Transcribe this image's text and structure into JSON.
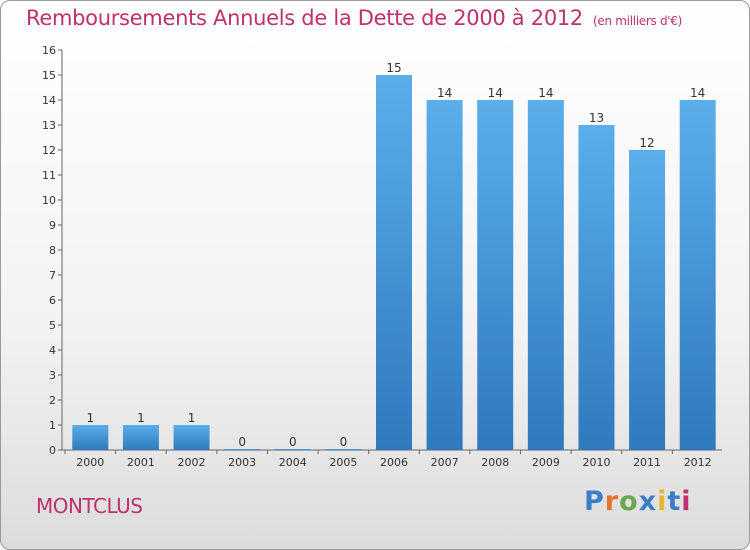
{
  "header": {
    "title": "Remboursements Annuels de la Dette de 2000 à 2012",
    "unit": "(en milliers d'€)"
  },
  "footer": {
    "city": "MONTCLUS",
    "logo": [
      "P",
      "r",
      "o",
      "x",
      "i",
      "t",
      "i"
    ]
  },
  "chart_data": {
    "type": "bar",
    "title": "Remboursements Annuels de la Dette de 2000 à 2012",
    "categories": [
      "2000",
      "2001",
      "2002",
      "2003",
      "2004",
      "2005",
      "2006",
      "2007",
      "2008",
      "2009",
      "2010",
      "2011",
      "2012"
    ],
    "values": [
      1,
      1,
      1,
      0,
      0,
      0,
      15,
      14,
      14,
      14,
      13,
      12,
      14
    ],
    "data_labels": [
      "1",
      "1",
      "1",
      "0",
      "0",
      "0",
      "15",
      "14",
      "14",
      "14",
      "13",
      "12",
      "14"
    ],
    "y_ticks": [
      0,
      1,
      2,
      3,
      4,
      5,
      6,
      7,
      8,
      9,
      10,
      11,
      12,
      13,
      14,
      15,
      16
    ],
    "ylim": [
      0,
      16
    ],
    "xlabel": "",
    "ylabel": "",
    "grid": false,
    "bar_color": "#4a90d9",
    "title_color": "#c0306a"
  }
}
